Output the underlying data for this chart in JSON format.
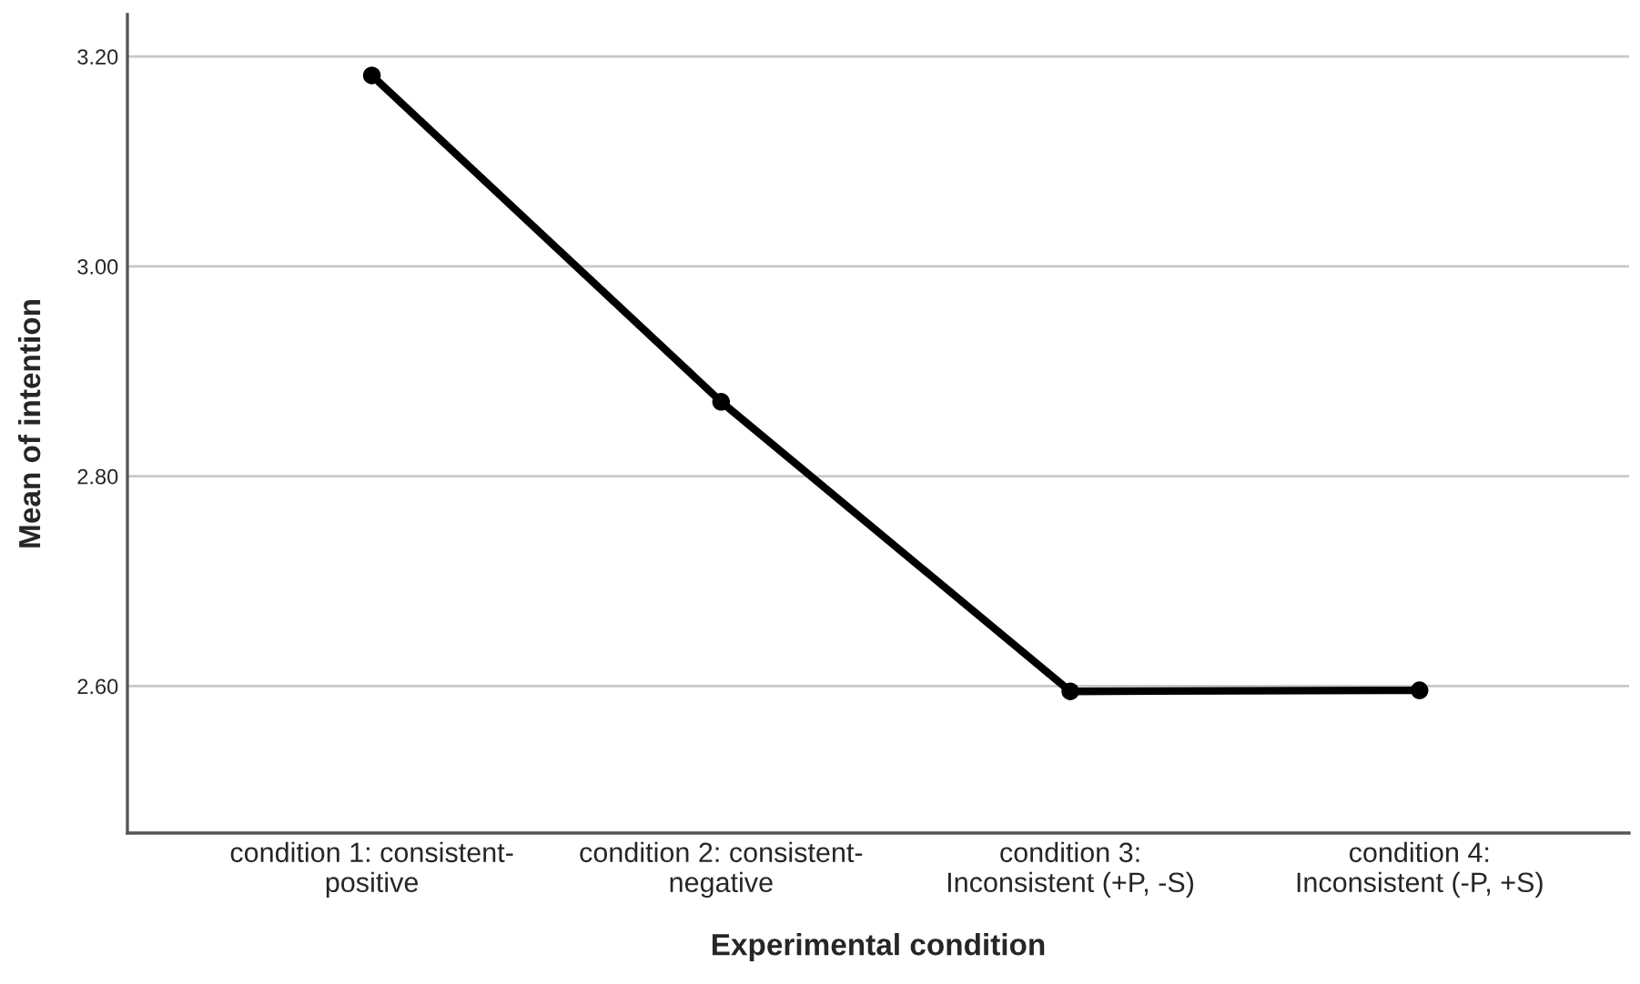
{
  "chart_data": {
    "type": "line",
    "xlabel": "Experimental condition",
    "ylabel": "Mean of intention",
    "categories": [
      "condition 1: consistent-\npositive",
      "condition 2: consistent-\nnegative",
      "condition 3:\nInconsistent (+P, -S)",
      "condition 4:\nInconsistent (-P, +S)"
    ],
    "series": [
      {
        "color": "#000000",
        "values": [
          3.182,
          2.871,
          2.595,
          2.596
        ]
      }
    ],
    "ylim": [
      2.46,
      3.24
    ],
    "yticks": [
      {
        "value": 2.6,
        "label": "2.60"
      },
      {
        "value": 2.8,
        "label": "2.80"
      },
      {
        "value": 3.0,
        "label": "3.00"
      },
      {
        "value": 3.2,
        "label": "3.20"
      }
    ],
    "grid": "y",
    "marker": "circle",
    "line_style": "solid",
    "legend": false
  }
}
